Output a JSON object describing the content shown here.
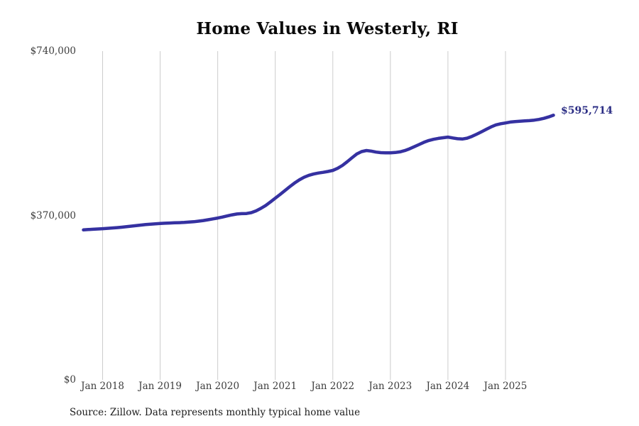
{
  "title": "Home Values in Westerly, RI",
  "end_label": "$595,714",
  "source_note": "Source: Zillow. Data represents monthly typical home value",
  "colors": {
    "line": "#3531a1",
    "end_label": "#2b2d84",
    "gridline": "#cccccc",
    "axis_text": "#3d3d3d",
    "title_text": "#0a0a0a",
    "background": "#ffffff"
  },
  "chart_data": {
    "type": "line",
    "title": "Home Values in Westerly, RI",
    "xlabel": "",
    "ylabel": "",
    "ylim": [
      0,
      740000
    ],
    "grid": "vertical-only",
    "legend": "none",
    "x_tick_labels": [
      "Jan 2018",
      "Jan 2019",
      "Jan 2020",
      "Jan 2021",
      "Jan 2022",
      "Jan 2023",
      "Jan 2024",
      "Jan 2025"
    ],
    "y_ticks": [
      {
        "label": "$0",
        "value": 0
      },
      {
        "label": "$370,000",
        "value": 370000
      },
      {
        "label": "$740,000",
        "value": 740000
      }
    ],
    "x_start": "2017-09",
    "x_end": "2025-11",
    "frequency": "monthly",
    "final_value": 595714,
    "series": [
      {
        "name": "Typical home value",
        "values": [
          337500,
          338300,
          339000,
          339700,
          340300,
          341000,
          341800,
          342700,
          343700,
          344800,
          346000,
          347200,
          348400,
          349500,
          350500,
          351300,
          352000,
          352600,
          353100,
          353500,
          353900,
          354400,
          355100,
          356000,
          357200,
          358700,
          360400,
          362300,
          364300,
          366500,
          369000,
          371400,
          373400,
          374100,
          374500,
          376400,
          380400,
          386000,
          392600,
          400500,
          409000,
          417300,
          426000,
          434800,
          442900,
          450000,
          456000,
          460500,
          463400,
          465500,
          467100,
          469100,
          471500,
          476100,
          482600,
          491000,
          500000,
          508400,
          513900,
          516200,
          514900,
          512800,
          511500,
          511000,
          511100,
          511700,
          513200,
          516100,
          520000,
          524800,
          529900,
          534800,
          538800,
          541500,
          543500,
          545000,
          546400,
          544600,
          542800,
          542200,
          544000,
          548000,
          553000,
          558500,
          564000,
          569500,
          574000,
          576500,
          578300,
          580300,
          581500,
          582300,
          582900,
          583600,
          584600,
          586200,
          588600,
          591800,
          595714
        ]
      }
    ]
  }
}
